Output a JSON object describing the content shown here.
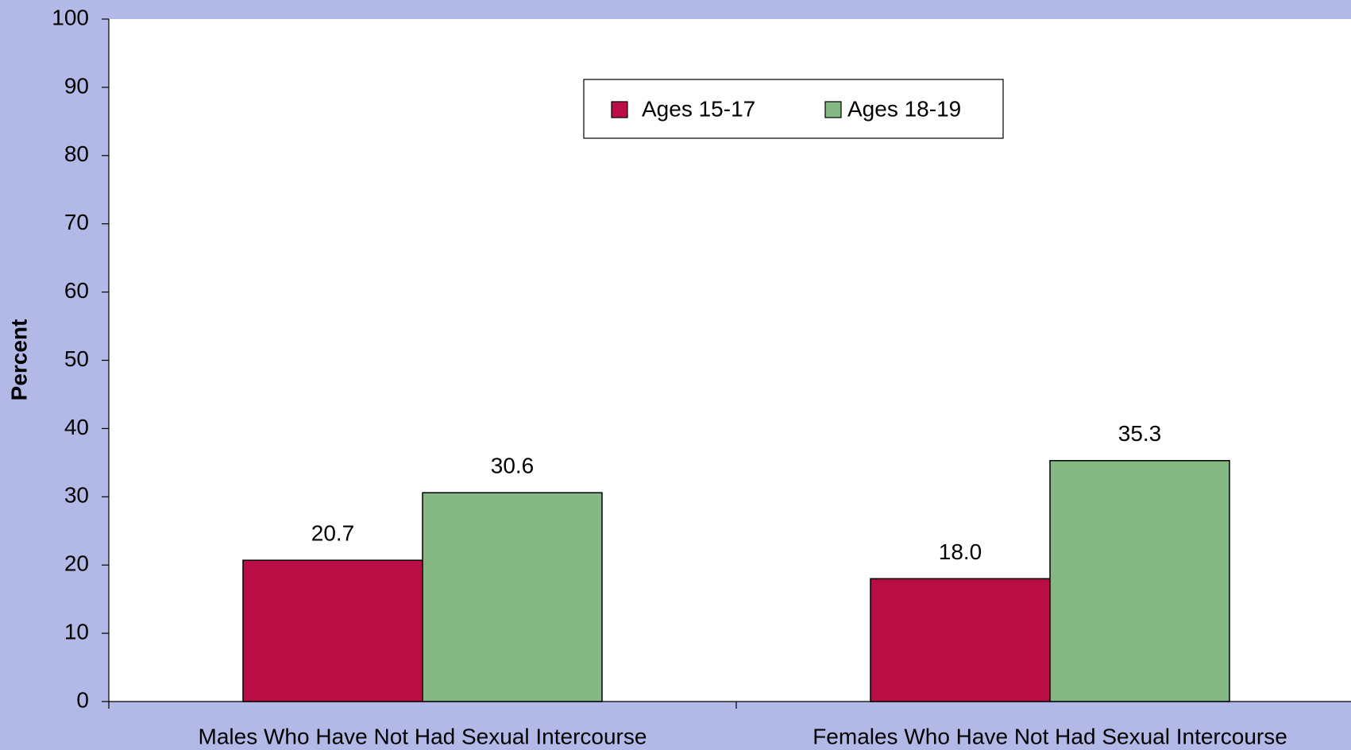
{
  "chart_data": {
    "type": "bar",
    "y_label": "Percent",
    "categories": [
      "Males Who Have Not Had Sexual Intercourse",
      "Females Who Have Not Had Sexual Intercourse"
    ],
    "series": [
      {
        "name": "Ages 15-17",
        "color": "#bb0d45",
        "values": [
          20.7,
          18.0
        ],
        "value_labels": [
          "20.7",
          "18.0"
        ]
      },
      {
        "name": "Ages 18-19",
        "color": "#84b784",
        "values": [
          30.6,
          35.3
        ],
        "value_labels": [
          "30.6",
          "35.3"
        ]
      }
    ],
    "ylim": [
      0,
      100
    ],
    "yticks": [
      0,
      10,
      20,
      30,
      40,
      50,
      60,
      70,
      80,
      90,
      100
    ]
  }
}
